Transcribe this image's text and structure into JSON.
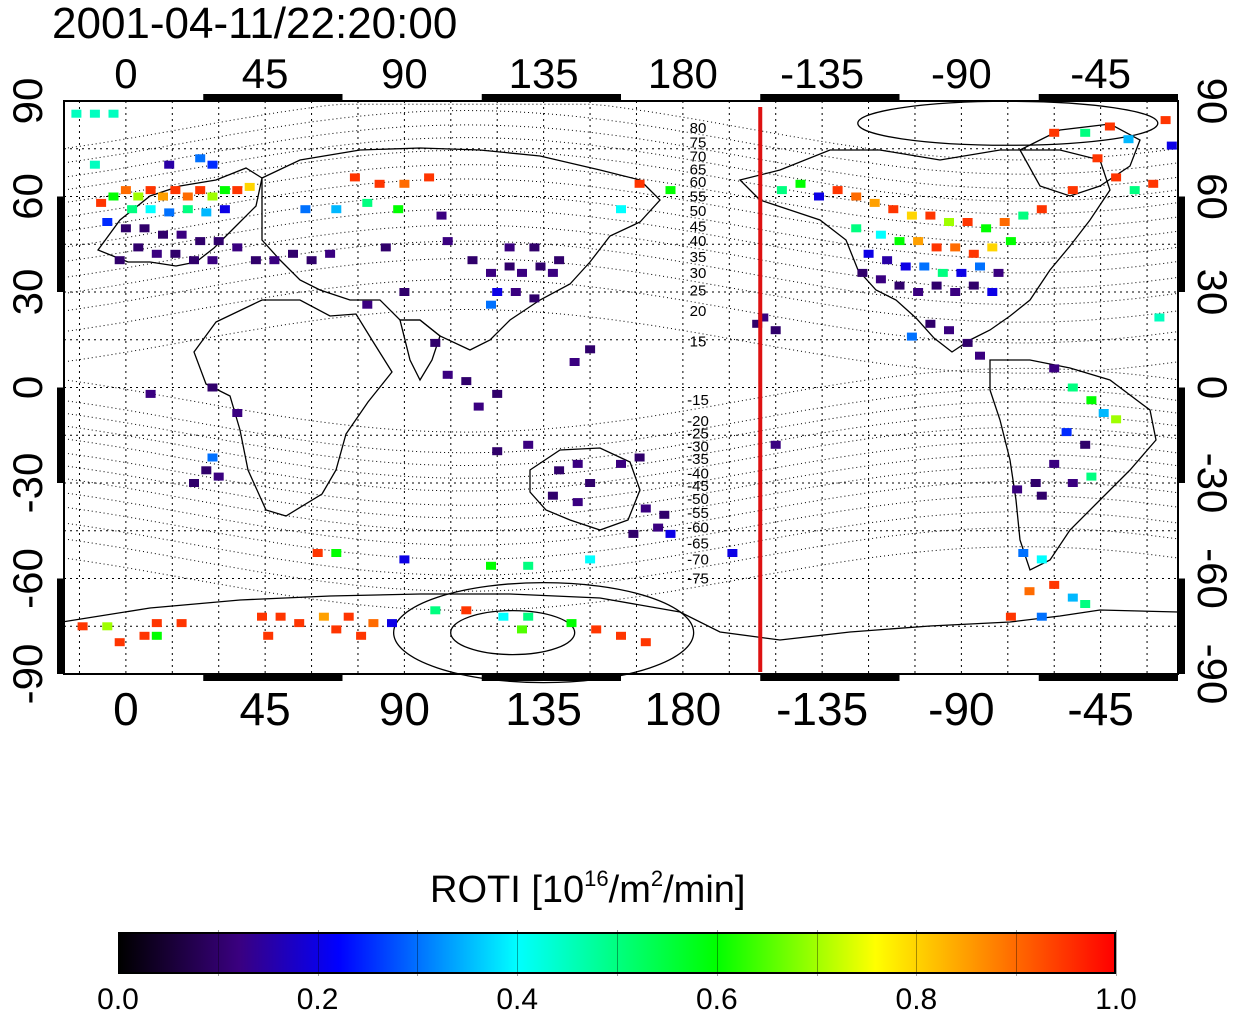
{
  "title": "2001-04-11/22:20:00",
  "map": {
    "type": "world-grid",
    "projection": "equirectangular",
    "lon_range": [
      -20,
      340
    ],
    "lat_range": [
      -90,
      90
    ],
    "lon_ticks": [
      0,
      45,
      90,
      135,
      180,
      225,
      270,
      315
    ],
    "lon_tick_labels": [
      "0",
      "45",
      "90",
      "135",
      "180",
      "-135",
      "-90",
      "-45"
    ],
    "lat_ticks": [
      -90,
      -60,
      -30,
      0,
      30,
      60,
      90
    ],
    "lat_tick_labels": [
      "-90",
      "-60",
      "-30",
      "0",
      "30",
      "60",
      "90"
    ],
    "grid": true,
    "midnight_meridian_lon": 205,
    "midnight_meridian_color": "#dd1111",
    "contour_labels_north": [
      {
        "text": "80",
        "lat": 81.5
      },
      {
        "text": "75",
        "lat": 77
      },
      {
        "text": "70",
        "lat": 72.5
      },
      {
        "text": "65",
        "lat": 68.5
      },
      {
        "text": "60",
        "lat": 64.5
      },
      {
        "text": "55",
        "lat": 60
      },
      {
        "text": "50",
        "lat": 55.5
      },
      {
        "text": "45",
        "lat": 50.5
      },
      {
        "text": "40",
        "lat": 46
      },
      {
        "text": "35",
        "lat": 41
      },
      {
        "text": "30",
        "lat": 36
      },
      {
        "text": "25",
        "lat": 30.5
      },
      {
        "text": "20",
        "lat": 24
      },
      {
        "text": "15",
        "lat": 14.5
      }
    ],
    "contour_labels_south": [
      {
        "text": "-15",
        "lat": -4
      },
      {
        "text": "-20",
        "lat": -10.5
      },
      {
        "text": "-25",
        "lat": -14.5
      },
      {
        "text": "-30",
        "lat": -18.5
      },
      {
        "text": "-35",
        "lat": -22.5
      },
      {
        "text": "-40",
        "lat": -27
      },
      {
        "text": "-45",
        "lat": -31
      },
      {
        "text": "-50",
        "lat": -35
      },
      {
        "text": "-55",
        "lat": -39.5
      },
      {
        "text": "-60",
        "lat": -44
      },
      {
        "text": "-65",
        "lat": -49
      },
      {
        "text": "-70",
        "lat": -54
      },
      {
        "text": "-75",
        "lat": -60
      }
    ],
    "roti_points": [
      {
        "lon": -8,
        "lat": 58,
        "v": 0.95
      },
      {
        "lon": -4,
        "lat": 60,
        "v": 0.6
      },
      {
        "lon": 0,
        "lat": 62,
        "v": 0.9
      },
      {
        "lon": 4,
        "lat": 60,
        "v": 0.7
      },
      {
        "lon": 8,
        "lat": 62,
        "v": 0.95
      },
      {
        "lon": 12,
        "lat": 60,
        "v": 0.85
      },
      {
        "lon": 16,
        "lat": 62,
        "v": 0.95
      },
      {
        "lon": 20,
        "lat": 60,
        "v": 0.9
      },
      {
        "lon": 24,
        "lat": 62,
        "v": 0.95
      },
      {
        "lon": 28,
        "lat": 60,
        "v": 0.7
      },
      {
        "lon": 32,
        "lat": 62,
        "v": 0.6
      },
      {
        "lon": 36,
        "lat": 62,
        "v": 0.95
      },
      {
        "lon": 40,
        "lat": 63,
        "v": 0.8
      },
      {
        "lon": 2,
        "lat": 56,
        "v": 0.5
      },
      {
        "lon": 8,
        "lat": 56,
        "v": 0.4
      },
      {
        "lon": 14,
        "lat": 55,
        "v": 0.3
      },
      {
        "lon": 20,
        "lat": 56,
        "v": 0.5
      },
      {
        "lon": 26,
        "lat": 55,
        "v": 0.35
      },
      {
        "lon": 32,
        "lat": 56,
        "v": 0.2
      },
      {
        "lon": -6,
        "lat": 52,
        "v": 0.25
      },
      {
        "lon": 0,
        "lat": 50,
        "v": 0.1
      },
      {
        "lon": 6,
        "lat": 50,
        "v": 0.1
      },
      {
        "lon": 12,
        "lat": 48,
        "v": 0.1
      },
      {
        "lon": 18,
        "lat": 48,
        "v": 0.12
      },
      {
        "lon": 24,
        "lat": 46,
        "v": 0.1
      },
      {
        "lon": 30,
        "lat": 46,
        "v": 0.1
      },
      {
        "lon": 36,
        "lat": 44,
        "v": 0.12
      },
      {
        "lon": 4,
        "lat": 44,
        "v": 0.1
      },
      {
        "lon": 10,
        "lat": 42,
        "v": 0.12
      },
      {
        "lon": 16,
        "lat": 42,
        "v": 0.1
      },
      {
        "lon": 22,
        "lat": 40,
        "v": 0.1
      },
      {
        "lon": -2,
        "lat": 40,
        "v": 0.1
      },
      {
        "lon": 28,
        "lat": 40,
        "v": 0.12
      },
      {
        "lon": 42,
        "lat": 40,
        "v": 0.1
      },
      {
        "lon": 48,
        "lat": 40,
        "v": 0.12
      },
      {
        "lon": 54,
        "lat": 42,
        "v": 0.1
      },
      {
        "lon": 60,
        "lat": 40,
        "v": 0.1
      },
      {
        "lon": 66,
        "lat": 42,
        "v": 0.12
      },
      {
        "lon": 84,
        "lat": 44,
        "v": 0.1
      },
      {
        "lon": 104,
        "lat": 46,
        "v": 0.12
      },
      {
        "lon": 112,
        "lat": 40,
        "v": 0.1
      },
      {
        "lon": 118,
        "lat": 36,
        "v": 0.12
      },
      {
        "lon": 124,
        "lat": 38,
        "v": 0.1
      },
      {
        "lon": 128,
        "lat": 36,
        "v": 0.12
      },
      {
        "lon": 134,
        "lat": 38,
        "v": 0.1
      },
      {
        "lon": 138,
        "lat": 36,
        "v": 0.12
      },
      {
        "lon": 140,
        "lat": 40,
        "v": 0.1
      },
      {
        "lon": 124,
        "lat": 44,
        "v": 0.12
      },
      {
        "lon": 132,
        "lat": 44,
        "v": 0.1
      },
      {
        "lon": 120,
        "lat": 30,
        "v": 0.2
      },
      {
        "lon": 126,
        "lat": 30,
        "v": 0.12
      },
      {
        "lon": 132,
        "lat": 28,
        "v": 0.1
      },
      {
        "lon": 118,
        "lat": 26,
        "v": 0.3
      },
      {
        "lon": 90,
        "lat": 30,
        "v": 0.1
      },
      {
        "lon": 78,
        "lat": 26,
        "v": 0.12
      },
      {
        "lon": 100,
        "lat": 14,
        "v": 0.1
      },
      {
        "lon": 104,
        "lat": 4,
        "v": 0.12
      },
      {
        "lon": 110,
        "lat": 2,
        "v": 0.1
      },
      {
        "lon": 114,
        "lat": -6,
        "v": 0.12
      },
      {
        "lon": 120,
        "lat": -2,
        "v": 0.1
      },
      {
        "lon": 145,
        "lat": 8,
        "v": 0.12
      },
      {
        "lon": 150,
        "lat": 12,
        "v": 0.1
      },
      {
        "lon": 8,
        "lat": -2,
        "v": 0.12
      },
      {
        "lon": 28,
        "lat": 0,
        "v": 0.1
      },
      {
        "lon": 36,
        "lat": -8,
        "v": 0.12
      },
      {
        "lon": 26,
        "lat": -26,
        "v": 0.1
      },
      {
        "lon": 30,
        "lat": -28,
        "v": 0.12
      },
      {
        "lon": 22,
        "lat": -30,
        "v": 0.1
      },
      {
        "lon": 28,
        "lat": -22,
        "v": 0.3
      },
      {
        "lon": 120,
        "lat": -20,
        "v": 0.1
      },
      {
        "lon": 130,
        "lat": -18,
        "v": 0.12
      },
      {
        "lon": 140,
        "lat": -26,
        "v": 0.1
      },
      {
        "lon": 146,
        "lat": -24,
        "v": 0.12
      },
      {
        "lon": 150,
        "lat": -30,
        "v": 0.1
      },
      {
        "lon": 146,
        "lat": -36,
        "v": 0.12
      },
      {
        "lon": 138,
        "lat": -34,
        "v": 0.1
      },
      {
        "lon": 160,
        "lat": -24,
        "v": 0.12
      },
      {
        "lon": 166,
        "lat": -22,
        "v": 0.1
      },
      {
        "lon": 168,
        "lat": -38,
        "v": 0.12
      },
      {
        "lon": 174,
        "lat": -40,
        "v": 0.1
      },
      {
        "lon": 172,
        "lat": -44,
        "v": 0.12
      },
      {
        "lon": 176,
        "lat": -46,
        "v": 0.2
      },
      {
        "lon": 164,
        "lat": -46,
        "v": 0.1
      },
      {
        "lon": 204,
        "lat": 20,
        "v": 0.1
      },
      {
        "lon": 206,
        "lat": 22,
        "v": 0.12
      },
      {
        "lon": 210,
        "lat": 18,
        "v": 0.1
      },
      {
        "lon": 210,
        "lat": -18,
        "v": 0.12
      },
      {
        "lon": 224,
        "lat": 60,
        "v": 0.2
      },
      {
        "lon": 212,
        "lat": 62,
        "v": 0.5
      },
      {
        "lon": 218,
        "lat": 64,
        "v": 0.6
      },
      {
        "lon": 230,
        "lat": 62,
        "v": 0.95
      },
      {
        "lon": 236,
        "lat": 60,
        "v": 0.9
      },
      {
        "lon": 242,
        "lat": 58,
        "v": 0.85
      },
      {
        "lon": 248,
        "lat": 56,
        "v": 0.95
      },
      {
        "lon": 254,
        "lat": 54,
        "v": 0.8
      },
      {
        "lon": 260,
        "lat": 54,
        "v": 0.95
      },
      {
        "lon": 266,
        "lat": 52,
        "v": 0.7
      },
      {
        "lon": 272,
        "lat": 52,
        "v": 0.95
      },
      {
        "lon": 278,
        "lat": 50,
        "v": 0.6
      },
      {
        "lon": 284,
        "lat": 52,
        "v": 0.9
      },
      {
        "lon": 290,
        "lat": 54,
        "v": 0.5
      },
      {
        "lon": 296,
        "lat": 56,
        "v": 0.95
      },
      {
        "lon": 236,
        "lat": 50,
        "v": 0.5
      },
      {
        "lon": 244,
        "lat": 48,
        "v": 0.4
      },
      {
        "lon": 250,
        "lat": 46,
        "v": 0.6
      },
      {
        "lon": 256,
        "lat": 46,
        "v": 0.85
      },
      {
        "lon": 262,
        "lat": 44,
        "v": 0.95
      },
      {
        "lon": 268,
        "lat": 44,
        "v": 0.9
      },
      {
        "lon": 274,
        "lat": 42,
        "v": 0.95
      },
      {
        "lon": 280,
        "lat": 44,
        "v": 0.8
      },
      {
        "lon": 286,
        "lat": 46,
        "v": 0.6
      },
      {
        "lon": 240,
        "lat": 42,
        "v": 0.2
      },
      {
        "lon": 246,
        "lat": 40,
        "v": 0.15
      },
      {
        "lon": 252,
        "lat": 38,
        "v": 0.2
      },
      {
        "lon": 258,
        "lat": 38,
        "v": 0.3
      },
      {
        "lon": 264,
        "lat": 36,
        "v": 0.5
      },
      {
        "lon": 270,
        "lat": 36,
        "v": 0.2
      },
      {
        "lon": 276,
        "lat": 38,
        "v": 0.3
      },
      {
        "lon": 282,
        "lat": 36,
        "v": 0.12
      },
      {
        "lon": 238,
        "lat": 36,
        "v": 0.1
      },
      {
        "lon": 244,
        "lat": 34,
        "v": 0.12
      },
      {
        "lon": 250,
        "lat": 32,
        "v": 0.1
      },
      {
        "lon": 256,
        "lat": 30,
        "v": 0.12
      },
      {
        "lon": 262,
        "lat": 32,
        "v": 0.1
      },
      {
        "lon": 268,
        "lat": 30,
        "v": 0.12
      },
      {
        "lon": 274,
        "lat": 32,
        "v": 0.1
      },
      {
        "lon": 280,
        "lat": 30,
        "v": 0.2
      },
      {
        "lon": 260,
        "lat": 20,
        "v": 0.1
      },
      {
        "lon": 266,
        "lat": 18,
        "v": 0.12
      },
      {
        "lon": 272,
        "lat": 14,
        "v": 0.1
      },
      {
        "lon": 276,
        "lat": 10,
        "v": 0.12
      },
      {
        "lon": 254,
        "lat": 16,
        "v": 0.3
      },
      {
        "lon": 300,
        "lat": 6,
        "v": 0.12
      },
      {
        "lon": 306,
        "lat": 0,
        "v": 0.5
      },
      {
        "lon": 312,
        "lat": -4,
        "v": 0.6
      },
      {
        "lon": 316,
        "lat": -8,
        "v": 0.35
      },
      {
        "lon": 320,
        "lat": -10,
        "v": 0.7
      },
      {
        "lon": 304,
        "lat": -14,
        "v": 0.25
      },
      {
        "lon": 310,
        "lat": -18,
        "v": 0.1
      },
      {
        "lon": 300,
        "lat": -24,
        "v": 0.12
      },
      {
        "lon": 294,
        "lat": -30,
        "v": 0.1
      },
      {
        "lon": 288,
        "lat": -32,
        "v": 0.12
      },
      {
        "lon": 296,
        "lat": -34,
        "v": 0.1
      },
      {
        "lon": 306,
        "lat": -30,
        "v": 0.12
      },
      {
        "lon": 312,
        "lat": -28,
        "v": 0.5
      },
      {
        "lon": 290,
        "lat": -52,
        "v": 0.3
      },
      {
        "lon": 296,
        "lat": -54,
        "v": 0.4
      },
      {
        "lon": 300,
        "lat": -62,
        "v": 0.95
      },
      {
        "lon": 292,
        "lat": -64,
        "v": 0.9
      },
      {
        "lon": 306,
        "lat": -66,
        "v": 0.35
      },
      {
        "lon": 286,
        "lat": -72,
        "v": 0.95
      },
      {
        "lon": 296,
        "lat": -72,
        "v": 0.3
      },
      {
        "lon": 310,
        "lat": -68,
        "v": 0.5
      },
      {
        "lon": -10,
        "lat": 70,
        "v": 0.45
      },
      {
        "lon": 14,
        "lat": 70,
        "v": 0.15
      },
      {
        "lon": 24,
        "lat": 72,
        "v": 0.3
      },
      {
        "lon": 28,
        "lat": 70,
        "v": 0.25
      },
      {
        "lon": -16,
        "lat": 86,
        "v": 0.45
      },
      {
        "lon": -10,
        "lat": 86,
        "v": 0.45
      },
      {
        "lon": -4,
        "lat": 86,
        "v": 0.45
      },
      {
        "lon": 74,
        "lat": 66,
        "v": 0.95
      },
      {
        "lon": 82,
        "lat": 64,
        "v": 0.95
      },
      {
        "lon": 90,
        "lat": 64,
        "v": 0.9
      },
      {
        "lon": 98,
        "lat": 66,
        "v": 0.95
      },
      {
        "lon": 58,
        "lat": 56,
        "v": 0.3
      },
      {
        "lon": 68,
        "lat": 56,
        "v": 0.35
      },
      {
        "lon": 78,
        "lat": 58,
        "v": 0.5
      },
      {
        "lon": 88,
        "lat": 56,
        "v": 0.6
      },
      {
        "lon": 102,
        "lat": 54,
        "v": 0.12
      },
      {
        "lon": 166,
        "lat": 64,
        "v": 0.95
      },
      {
        "lon": 176,
        "lat": 62,
        "v": 0.6
      },
      {
        "lon": 160,
        "lat": 56,
        "v": 0.4
      },
      {
        "lon": 310,
        "lat": 80,
        "v": 0.5
      },
      {
        "lon": 318,
        "lat": 82,
        "v": 0.95
      },
      {
        "lon": 324,
        "lat": 78,
        "v": 0.35
      },
      {
        "lon": 300,
        "lat": 80,
        "v": 0.95
      },
      {
        "lon": 314,
        "lat": 72,
        "v": 0.95
      },
      {
        "lon": 306,
        "lat": 62,
        "v": 0.95
      },
      {
        "lon": 320,
        "lat": 66,
        "v": 0.95
      },
      {
        "lon": 326,
        "lat": 62,
        "v": 0.5
      },
      {
        "lon": 332,
        "lat": 64,
        "v": 0.95
      },
      {
        "lon": 336,
        "lat": 84,
        "v": 0.95
      },
      {
        "lon": 338,
        "lat": 76,
        "v": 0.2
      },
      {
        "lon": 334,
        "lat": 22,
        "v": 0.45
      },
      {
        "lon": 62,
        "lat": -52,
        "v": 0.95
      },
      {
        "lon": 68,
        "lat": -52,
        "v": 0.6
      },
      {
        "lon": 90,
        "lat": -54,
        "v": 0.2
      },
      {
        "lon": 118,
        "lat": -56,
        "v": 0.6
      },
      {
        "lon": 130,
        "lat": -56,
        "v": 0.5
      },
      {
        "lon": 150,
        "lat": -54,
        "v": 0.4
      },
      {
        "lon": 196,
        "lat": -52,
        "v": 0.2
      },
      {
        "lon": -14,
        "lat": -75,
        "v": 0.95
      },
      {
        "lon": -6,
        "lat": -75,
        "v": 0.7
      },
      {
        "lon": -2,
        "lat": -80,
        "v": 0.95
      },
      {
        "lon": 6,
        "lat": -78,
        "v": 0.95
      },
      {
        "lon": 10,
        "lat": -74,
        "v": 0.95
      },
      {
        "lon": 18,
        "lat": -74,
        "v": 0.95
      },
      {
        "lon": 10,
        "lat": -78,
        "v": 0.6
      },
      {
        "lon": 44,
        "lat": -72,
        "v": 0.95
      },
      {
        "lon": 50,
        "lat": -72,
        "v": 0.95
      },
      {
        "lon": 56,
        "lat": -74,
        "v": 0.95
      },
      {
        "lon": 64,
        "lat": -72,
        "v": 0.85
      },
      {
        "lon": 72,
        "lat": -72,
        "v": 0.95
      },
      {
        "lon": 80,
        "lat": -74,
        "v": 0.9
      },
      {
        "lon": 46,
        "lat": -78,
        "v": 0.95
      },
      {
        "lon": 68,
        "lat": -76,
        "v": 0.95
      },
      {
        "lon": 76,
        "lat": -78,
        "v": 0.95
      },
      {
        "lon": 86,
        "lat": -74,
        "v": 0.2
      },
      {
        "lon": 100,
        "lat": -70,
        "v": 0.5
      },
      {
        "lon": 110,
        "lat": -70,
        "v": 0.95
      },
      {
        "lon": 122,
        "lat": -72,
        "v": 0.4
      },
      {
        "lon": 130,
        "lat": -72,
        "v": 0.5
      },
      {
        "lon": 144,
        "lat": -74,
        "v": 0.6
      },
      {
        "lon": 152,
        "lat": -76,
        "v": 0.95
      },
      {
        "lon": 160,
        "lat": -78,
        "v": 0.95
      },
      {
        "lon": 168,
        "lat": -80,
        "v": 0.95
      },
      {
        "lon": 128,
        "lat": -76,
        "v": 0.65
      }
    ]
  },
  "colorbar": {
    "title_main": "ROTI  [10",
    "title_sup1": "16",
    "title_mid": "/m",
    "title_sup2": "2",
    "title_end": "/min]",
    "vmin": 0.0,
    "vmax": 1.0,
    "tick_values": [
      0.0,
      0.2,
      0.4,
      0.6,
      0.8,
      1.0
    ],
    "tick_labels": [
      "0.0",
      "0.2",
      "0.4",
      "0.6",
      "0.8",
      "1.0"
    ],
    "colormap": "rainbow-dark",
    "stops": [
      {
        "v": 0.0,
        "color": "#000000"
      },
      {
        "v": 0.12,
        "color": "#3a0080"
      },
      {
        "v": 0.22,
        "color": "#0000ff"
      },
      {
        "v": 0.4,
        "color": "#00ffff"
      },
      {
        "v": 0.6,
        "color": "#00ff00"
      },
      {
        "v": 0.76,
        "color": "#ffff00"
      },
      {
        "v": 0.88,
        "color": "#ff8000"
      },
      {
        "v": 1.0,
        "color": "#ff0000"
      }
    ]
  }
}
